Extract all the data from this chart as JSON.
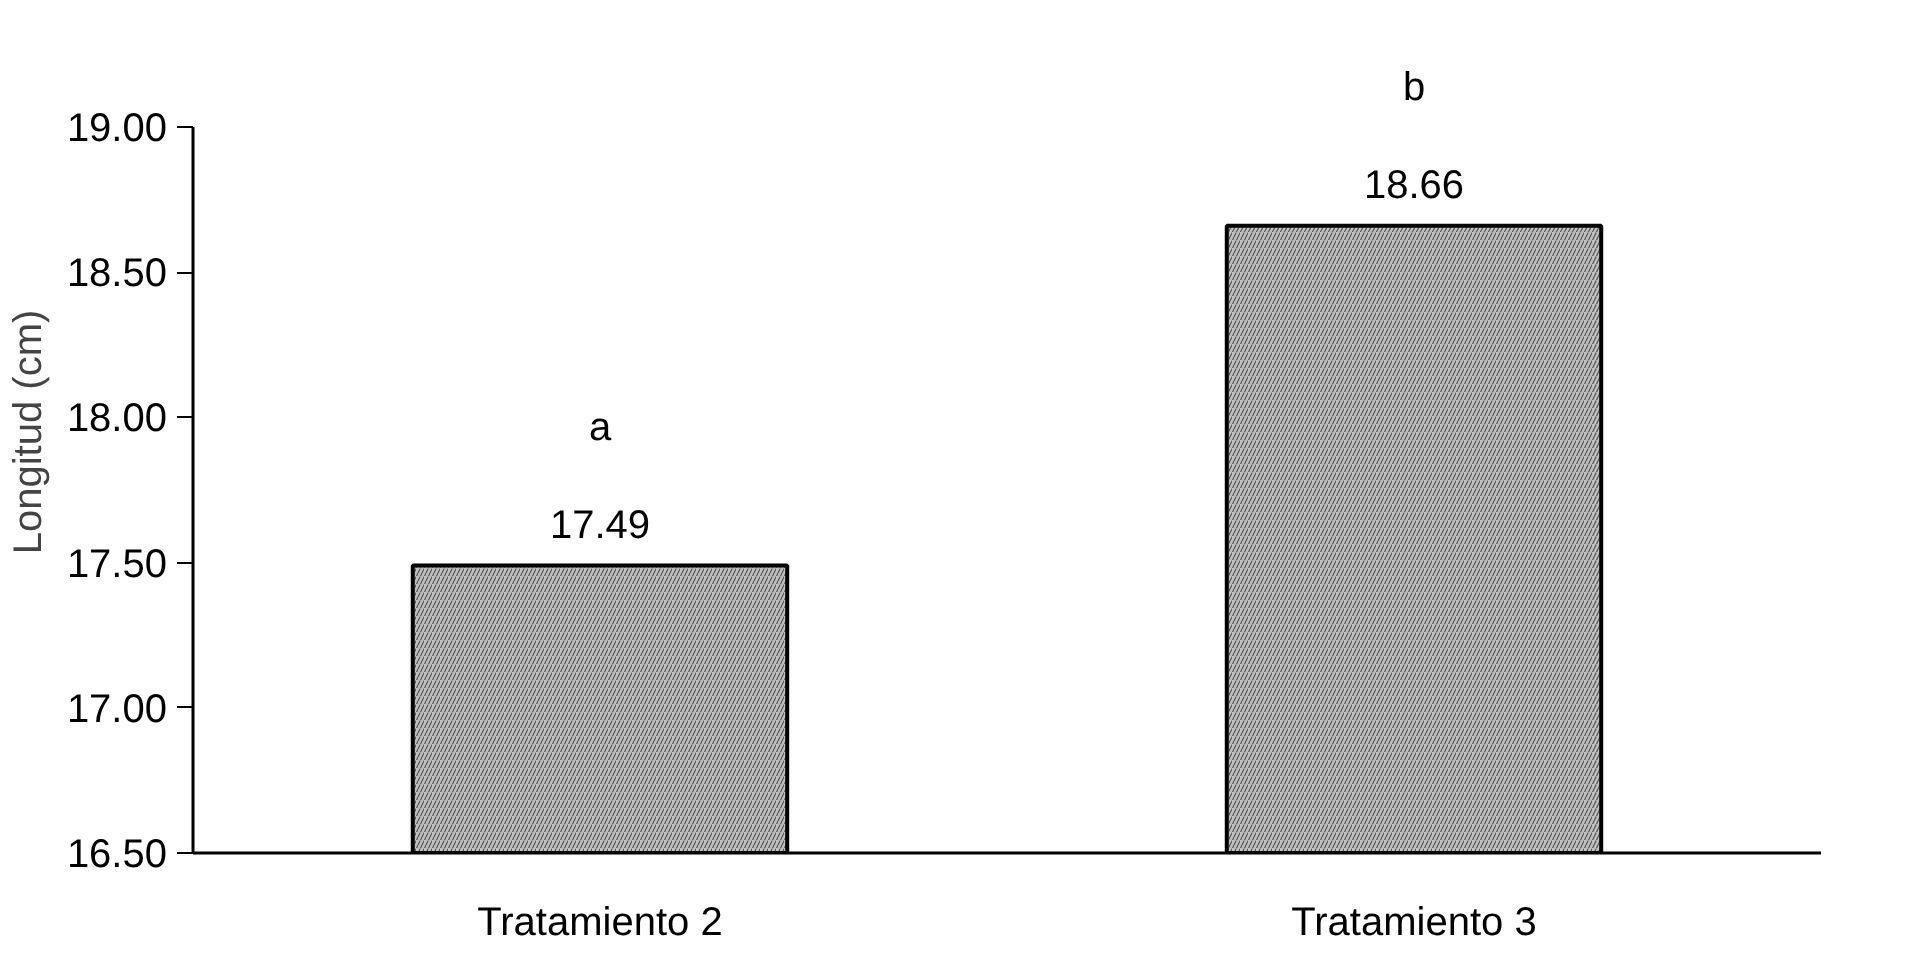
{
  "chart_data": {
    "type": "bar",
    "ylabel": "Longitud (cm)",
    "categories": [
      "Tratamiento 2",
      "Tratamiento 3"
    ],
    "values": [
      17.49,
      18.66
    ],
    "color": "#c0c0c0",
    "data_labels": true,
    "annotations": [
      "a",
      "b"
    ],
    "ylim": [
      16.5,
      19.0
    ],
    "yticks": [
      {
        "value": 16.5,
        "label": "16.50"
      },
      {
        "value": 17.0,
        "label": "17.00"
      },
      {
        "value": 17.5,
        "label": "17.50"
      },
      {
        "value": 18.0,
        "label": "18.00"
      },
      {
        "value": 18.5,
        "label": "18.50"
      },
      {
        "value": 19.0,
        "label": "19.00"
      }
    ],
    "grid": false
  }
}
